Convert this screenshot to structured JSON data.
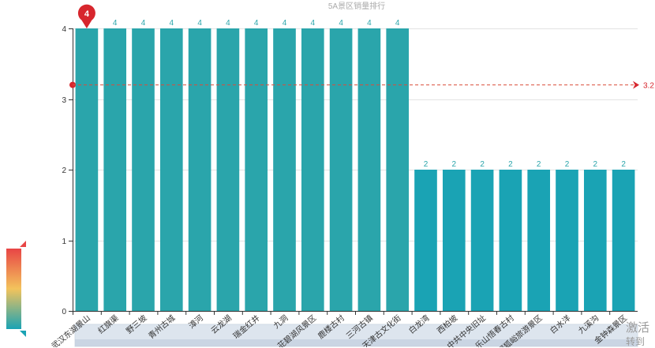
{
  "watermark": {
    "line1": "激活",
    "line2": "转到"
  },
  "chart_data": {
    "type": "bar",
    "title": "5A景区销量排行",
    "categories": [
      "武汉东湖景山",
      "红旗渠",
      "野三坡",
      "青州古城",
      "漳河",
      "云龙湖",
      "瑞金红井",
      "九洞",
      "茈碧湖风景区",
      "鹿楼古村",
      "三河古镇",
      "天津古文化街",
      "白龙湾",
      "西柏坡",
      "中共中央旧址",
      "乐山悟春古村",
      "野狐峪旅游景区",
      "白水洋",
      "九溪沟",
      "金钟森景区"
    ],
    "values": [
      4,
      4,
      4,
      4,
      4,
      4,
      4,
      4,
      4,
      4,
      4,
      4,
      2,
      2,
      2,
      2,
      2,
      2,
      2,
      2
    ],
    "ylim": [
      0,
      4
    ],
    "yticks": [
      0,
      1,
      2,
      3,
      4
    ],
    "xlabel": "",
    "ylabel": "",
    "grid": true,
    "legend": "none",
    "mark_point": {
      "label": "4",
      "category_index": 0,
      "value": 4
    },
    "mark_line": {
      "label": "3.2",
      "value": 3.2
    },
    "colors": {
      "bar_high": "#2aa5ab",
      "bar_low": "#1aa3b4",
      "value_label": "#2aa5ab",
      "mark_point": "#d7262d",
      "mark_line": "#d94e3d",
      "axis": "#333333",
      "grid": "#e3e3e3",
      "title": "#aaaaaa",
      "visualmap_top": "#e84545",
      "visualmap_mid": "#f3c35c",
      "visualmap_bottom": "#1aa3b4"
    }
  }
}
